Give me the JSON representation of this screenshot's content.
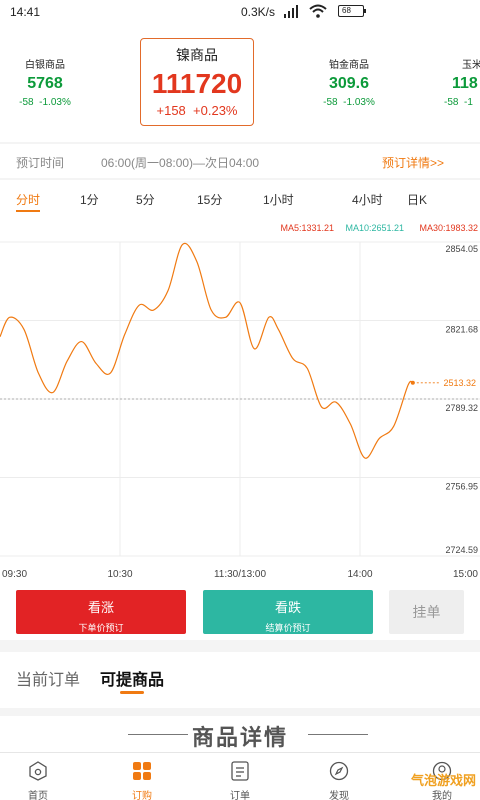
{
  "status_bar": {
    "time": "14:41",
    "net_speed": "0.3K/s",
    "battery": "68"
  },
  "tickers": [
    {
      "name": "白银商品",
      "price": "5768",
      "change": "-58",
      "percent": "-1.03%"
    },
    {
      "name": "镍商品",
      "price": "111720",
      "change": "+158",
      "percent": "+0.23%"
    },
    {
      "name": "铂金商品",
      "price": "309.6",
      "change": "-58",
      "percent": "-1.03%"
    },
    {
      "name": "玉米",
      "price": "118",
      "change": "-58",
      "percent": "-1"
    }
  ],
  "reserve": {
    "label": "预订时间",
    "value": "06:00(周一08:00)—次日04:00",
    "detail_link": "预订详情>>"
  },
  "period_tabs": [
    "分时",
    "1分",
    "5分",
    "15分",
    "1小时",
    "4小时",
    "日K"
  ],
  "ma": {
    "ma5": "MA5:1331.21",
    "ma10": "MA10:2651.21",
    "ma30": "MA30:1983.32"
  },
  "chart_data": {
    "type": "line",
    "x_ticks": [
      "09:30",
      "10:30",
      "11:30/13:00",
      "14:00",
      "15:00"
    ],
    "y_ticks": [
      "2854.05",
      "2821.68",
      "2789.32",
      "2756.95",
      "2724.59"
    ],
    "ylim": [
      2724.59,
      2854.05
    ],
    "reference_value": 2789.32,
    "current_label": "2513.32",
    "x": [
      0,
      2,
      5,
      8,
      11,
      14,
      17,
      20,
      23,
      26,
      29,
      32,
      35,
      38,
      41,
      44,
      47,
      50,
      53,
      56,
      58,
      61,
      64,
      67,
      70,
      73,
      76,
      79,
      82,
      85,
      86
    ],
    "y": [
      2815,
      2823,
      2818,
      2800,
      2792,
      2805,
      2813,
      2804,
      2800,
      2816,
      2828,
      2826,
      2834,
      2853,
      2846,
      2826,
      2823,
      2829,
      2810,
      2823,
      2818,
      2806,
      2802,
      2786,
      2788,
      2779,
      2765,
      2773,
      2778,
      2795,
      2796
    ],
    "series_color": "#f07a12"
  },
  "actions": {
    "buy_up": {
      "title": "看涨",
      "sub": "下单价预订"
    },
    "buy_down": {
      "title": "看跌",
      "sub": "结算价预订"
    },
    "pending": "挂单"
  },
  "order_tabs": [
    "当前订单",
    "可提商品"
  ],
  "detail_title": "商品详情",
  "nav": [
    "首页",
    "订购",
    "订单",
    "发现",
    "我的"
  ],
  "watermark": "气泡游戏网"
}
